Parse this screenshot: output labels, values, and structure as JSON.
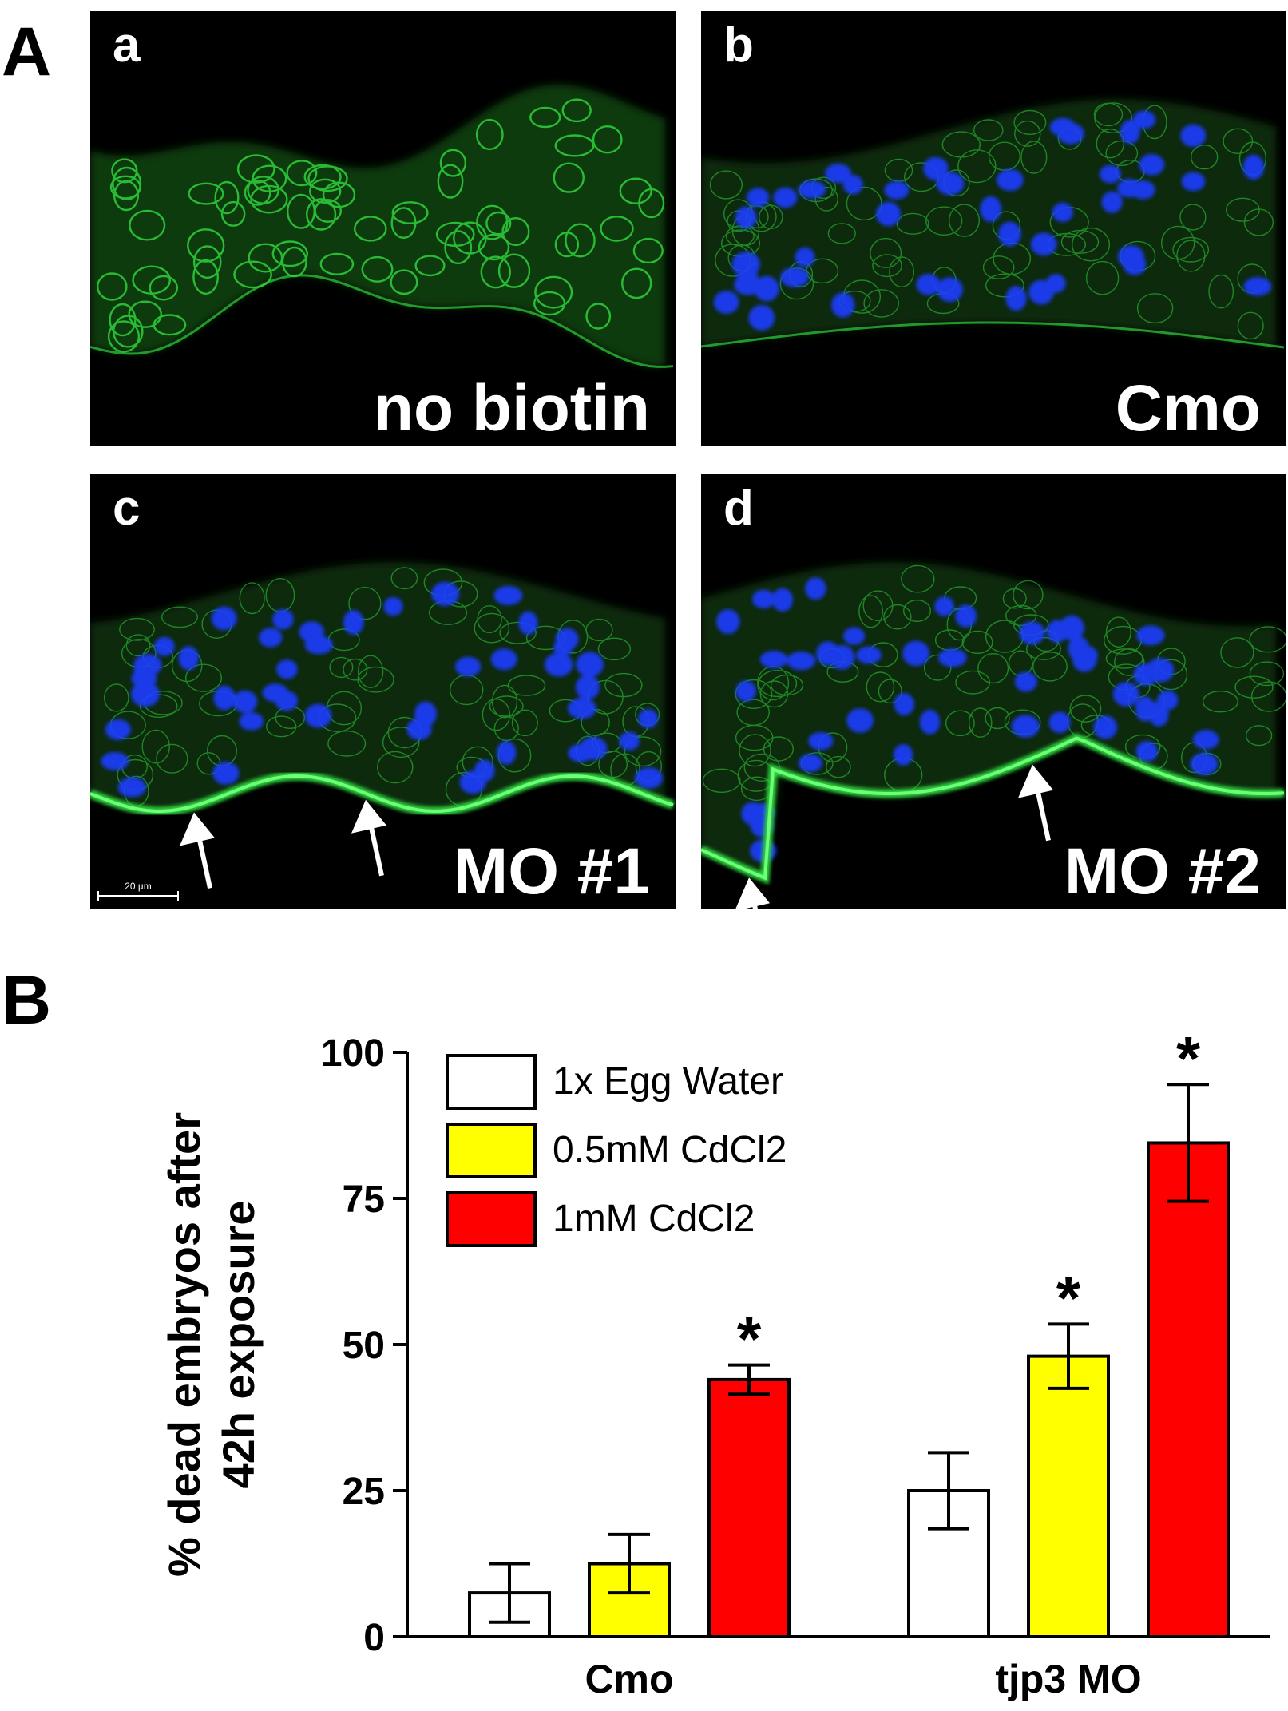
{
  "figure": {
    "panel_A_label": "A",
    "panel_B_label": "B",
    "micrographs": [
      {
        "letter": "a",
        "label": "no biotin",
        "nuclei": false,
        "arrows": 0,
        "scale_bar": ""
      },
      {
        "letter": "b",
        "label": "Cmo",
        "nuclei": true,
        "arrows": 0,
        "scale_bar": ""
      },
      {
        "letter": "c",
        "label": "MO #1",
        "nuclei": true,
        "arrows": 2,
        "scale_bar": "20 µm"
      },
      {
        "letter": "d",
        "label": "MO #2",
        "nuclei": true,
        "arrows": 2,
        "scale_bar": ""
      }
    ],
    "stain_colors": {
      "membrane": "#2fd23c",
      "nuclei": "#1e3cff",
      "background": "#000000"
    }
  },
  "chart_data": {
    "type": "bar",
    "title": "",
    "ylabel_lines": [
      "% dead embryos after",
      "42h exposure"
    ],
    "xlabel": "",
    "ylim": [
      0,
      100
    ],
    "yticks": [
      0,
      25,
      50,
      75,
      100
    ],
    "categories": [
      "Cmo",
      "tjp3 MO"
    ],
    "series": [
      {
        "name": "1x Egg Water",
        "color": "#ffffff",
        "values": [
          7.5,
          25
        ],
        "errors": [
          5,
          6.5
        ],
        "significant": [
          false,
          false
        ]
      },
      {
        "name": "0.5mM CdCl2",
        "color": "#ffff00",
        "values": [
          12.5,
          48
        ],
        "errors": [
          5,
          5.5
        ],
        "significant": [
          false,
          true
        ]
      },
      {
        "name": "1mM CdCl2",
        "color": "#ff0000",
        "values": [
          44,
          84.5
        ],
        "errors": [
          2.5,
          10
        ],
        "significant": [
          true,
          true
        ]
      }
    ],
    "significance_marker": "*",
    "legend_position": "top-left"
  }
}
